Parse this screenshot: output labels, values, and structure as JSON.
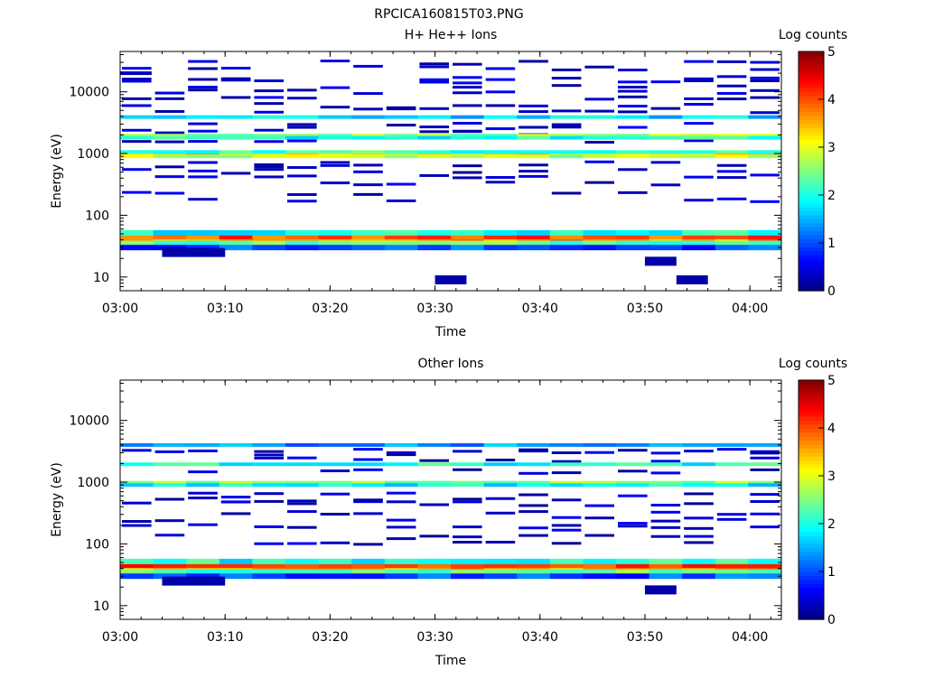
{
  "figure_title": "RPCICA160815T03.PNG",
  "chart_data": [
    {
      "type": "heatmap",
      "title": "H+ He++ Ions",
      "xlabel": "Time",
      "ylabel": "Energy (eV)",
      "x_ticks": [
        "03:00",
        "03:10",
        "03:20",
        "03:30",
        "03:40",
        "03:50",
        "04:00"
      ],
      "xlim": [
        "03:00",
        "04:03"
      ],
      "y_scale": "log",
      "y_ticks": [
        "10",
        "100",
        "1000",
        "10000"
      ],
      "ylim": [
        6,
        45000
      ],
      "colorbar": {
        "label": "Log counts",
        "ticks": [
          "0",
          "1",
          "2",
          "3",
          "4",
          "5"
        ],
        "range": [
          0,
          5
        ]
      },
      "bands": [
        {
          "energy": 40,
          "start": "03:00",
          "end": "04:03",
          "value": 3.6
        },
        {
          "energy": 45,
          "start": "03:00",
          "end": "04:03",
          "value": 4.0
        },
        {
          "energy": 35,
          "start": "03:00",
          "end": "04:03",
          "value": 2.4
        },
        {
          "energy": 52,
          "start": "03:00",
          "end": "04:03",
          "value": 2.0
        },
        {
          "energy": 30,
          "start": "03:00",
          "end": "04:03",
          "value": 1.0
        },
        {
          "energy": 980,
          "start": "03:00",
          "end": "04:03",
          "value": 3.3
        },
        {
          "energy": 900,
          "start": "03:00",
          "end": "04:03",
          "value": 2.8
        },
        {
          "energy": 1060,
          "start": "03:00",
          "end": "04:03",
          "value": 2.2
        },
        {
          "energy": 1950,
          "start": "03:00",
          "end": "04:03",
          "value": 2.6
        },
        {
          "energy": 1800,
          "start": "03:00",
          "end": "04:03",
          "value": 2.0
        },
        {
          "energy": 3900,
          "start": "03:00",
          "end": "04:03",
          "value": 1.7
        },
        {
          "energy": 20000,
          "start": "03:00",
          "end": "03:03",
          "value": 0.3
        },
        {
          "energy": 25,
          "start": "03:04",
          "end": "03:10",
          "value": 0.2
        },
        {
          "energy": 9,
          "start": "03:30",
          "end": "03:33",
          "value": 0.2
        },
        {
          "energy": 9,
          "start": "03:53",
          "end": "03:56",
          "value": 0.2
        },
        {
          "energy": 18,
          "start": "03:50",
          "end": "03:53",
          "value": 0.2
        }
      ],
      "sparse_levels": [
        180,
        230,
        320,
        420,
        520,
        600,
        700,
        1500,
        2200,
        2500,
        3000,
        5000,
        6000,
        8000,
        10000,
        12000,
        15000,
        17000,
        24000,
        30000
      ]
    },
    {
      "type": "heatmap",
      "title": "Other Ions",
      "xlabel": "Time",
      "ylabel": "Energy (eV)",
      "x_ticks": [
        "03:00",
        "03:10",
        "03:20",
        "03:30",
        "03:40",
        "03:50",
        "04:00"
      ],
      "xlim": [
        "03:00",
        "04:03"
      ],
      "y_scale": "log",
      "y_ticks": [
        "10",
        "100",
        "1000",
        "10000"
      ],
      "ylim": [
        6,
        45000
      ],
      "colorbar": {
        "label": "Log counts",
        "ticks": [
          "0",
          "1",
          "2",
          "3",
          "4",
          "5"
        ],
        "range": [
          0,
          5
        ]
      },
      "bands": [
        {
          "energy": 40,
          "start": "03:00",
          "end": "04:03",
          "value": 3.6
        },
        {
          "energy": 45,
          "start": "03:00",
          "end": "04:03",
          "value": 4.0
        },
        {
          "energy": 35,
          "start": "03:00",
          "end": "04:03",
          "value": 2.4
        },
        {
          "energy": 52,
          "start": "03:00",
          "end": "04:03",
          "value": 2.0
        },
        {
          "energy": 30,
          "start": "03:00",
          "end": "04:03",
          "value": 1.0
        },
        {
          "energy": 980,
          "start": "03:00",
          "end": "04:03",
          "value": 2.6
        },
        {
          "energy": 900,
          "start": "03:00",
          "end": "04:03",
          "value": 1.9
        },
        {
          "energy": 1950,
          "start": "03:00",
          "end": "04:03",
          "value": 2.0
        },
        {
          "energy": 4000,
          "start": "03:00",
          "end": "04:03",
          "value": 1.3
        },
        {
          "energy": 25,
          "start": "03:04",
          "end": "03:10",
          "value": 0.2
        },
        {
          "energy": 18,
          "start": "03:50",
          "end": "03:53",
          "value": 0.2
        }
      ],
      "sparse_levels": [
        100,
        130,
        180,
        200,
        250,
        320,
        450,
        520,
        620,
        1500,
        2300,
        3000,
        3200
      ]
    }
  ]
}
